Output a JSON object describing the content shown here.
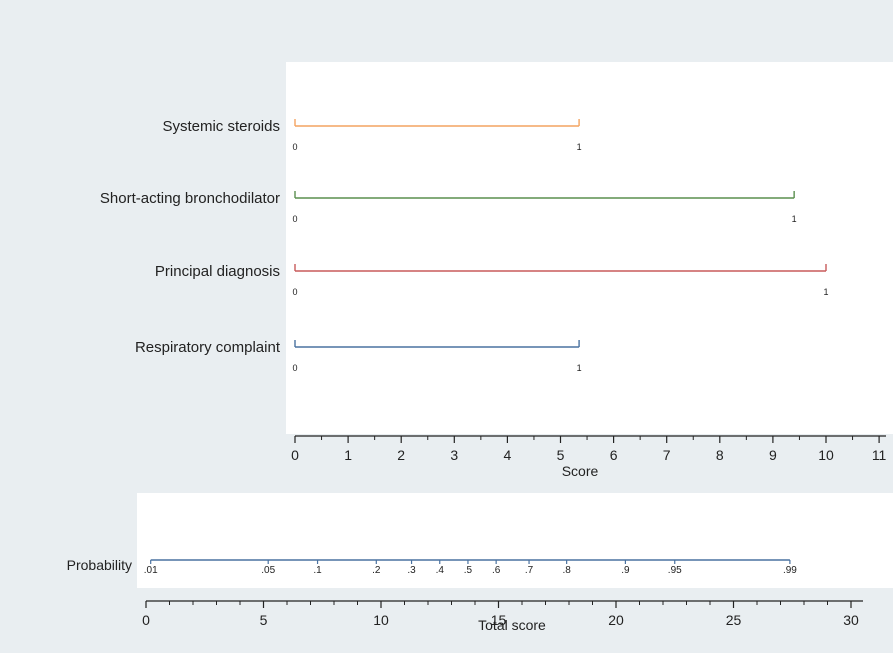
{
  "chart_data": [
    {
      "type": "nomogram-points",
      "xlabel": "Score",
      "xlim": [
        0,
        11
      ],
      "x_ticks": [
        0,
        1,
        2,
        3,
        4,
        5,
        6,
        7,
        8,
        9,
        10,
        11
      ],
      "x_tick_labels": [
        "0",
        "1",
        "2",
        "3",
        "4",
        "5",
        "6",
        "7",
        "8",
        "9",
        "10",
        "11"
      ],
      "series": [
        {
          "name": "Systemic steroids",
          "color": "#f4a460",
          "points": [
            {
              "label": "0",
              "score": 0
            },
            {
              "label": "1",
              "score": 5.35
            }
          ]
        },
        {
          "name": "Short-acting bronchodilator",
          "color": "#5a8f4f",
          "points": [
            {
              "label": "0",
              "score": 0
            },
            {
              "label": "1",
              "score": 9.4
            }
          ]
        },
        {
          "name": "Principal diagnosis",
          "color": "#c85a5a",
          "points": [
            {
              "label": "0",
              "score": 0
            },
            {
              "label": "1",
              "score": 10
            }
          ]
        },
        {
          "name": "Respiratory complaint",
          "color": "#4a72a0",
          "points": [
            {
              "label": "0",
              "score": 0
            },
            {
              "label": "1",
              "score": 5.35
            }
          ]
        }
      ]
    },
    {
      "type": "nomogram-probability",
      "row_label": "Probability",
      "xlabel": "Total score",
      "xlim": [
        0,
        31
      ],
      "x_ticks": [
        0,
        5,
        10,
        15,
        20,
        25,
        30
      ],
      "x_tick_labels": [
        "0",
        "5",
        "10",
        "15",
        "20",
        "25",
        "30"
      ],
      "color": "#4a72a0",
      "range": [
        0.2,
        27.4
      ],
      "points": [
        {
          "label": ".01",
          "total": 0.2
        },
        {
          "label": ".05",
          "total": 5.2
        },
        {
          "label": ".1",
          "total": 7.3
        },
        {
          "label": ".2",
          "total": 9.8
        },
        {
          "label": ".3",
          "total": 11.3
        },
        {
          "label": ".4",
          "total": 12.5
        },
        {
          "label": ".5",
          "total": 13.7
        },
        {
          "label": ".6",
          "total": 14.9
        },
        {
          "label": ".7",
          "total": 16.3
        },
        {
          "label": ".8",
          "total": 17.9
        },
        {
          "label": ".9",
          "total": 20.4
        },
        {
          "label": ".95",
          "total": 22.5
        },
        {
          "label": ".99",
          "total": 27.4
        }
      ]
    }
  ],
  "colors": {
    "outer_background": "#e9eef1",
    "plot_background": "#ffffff",
    "axis": "#222222"
  }
}
